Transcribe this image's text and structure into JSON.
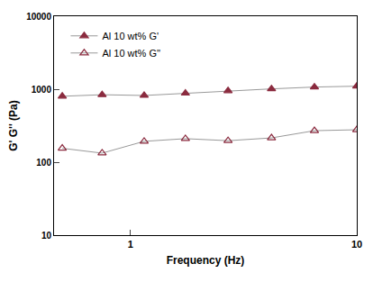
{
  "chart_data": {
    "type": "line",
    "x_label": "Frequency (Hz)",
    "y_label": "G' G'' (Pa)",
    "log": true,
    "grid": false,
    "legend": "top-left",
    "x": [
      0.5,
      0.75,
      1.15,
      1.75,
      2.7,
      4.2,
      6.5,
      10
    ],
    "series": [
      {
        "name": "Al 10 wt% G'",
        "color": "#8b2b3f",
        "marker": "triangle-up",
        "line_style": "solid",
        "values": [
          800,
          840,
          820,
          880,
          950,
          1010,
          1070,
          1100
        ]
      },
      {
        "name": "Al 10 wt% G''",
        "color": "#8b2b3f",
        "marker": "triangle-up-open",
        "line_style": "solid",
        "values": [
          155,
          133,
          193,
          210,
          197,
          215,
          270,
          278
        ]
      }
    ],
    "xlim": [
      0.46,
      10
    ],
    "xticks": [
      1,
      10
    ],
    "ylim": [
      10,
      10000
    ],
    "yticks": [
      10,
      100,
      1000,
      10000
    ]
  }
}
